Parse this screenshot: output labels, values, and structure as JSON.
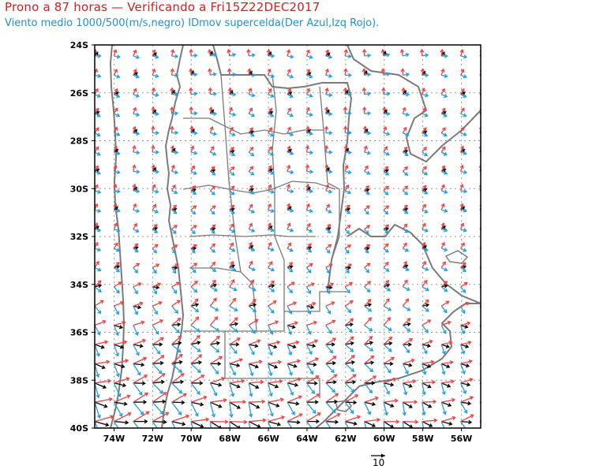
{
  "header": {
    "title": "Prono a 87 horas — Verificando a Fri15Z22DEC2017",
    "subtitle": "Viento medio 1000/500(m/s,negro) IDmov supercelda(Der Azul,Izq Rojo)."
  },
  "map": {
    "lat_labels": [
      "24S",
      "26S",
      "28S",
      "30S",
      "32S",
      "34S",
      "36S",
      "38S",
      "40S"
    ],
    "lon_labels": [
      "74W",
      "72W",
      "70W",
      "68W",
      "66W",
      "64W",
      "62W",
      "60W",
      "58W",
      "56W"
    ],
    "reference_vector_label": "10",
    "colors": {
      "mean_wind": "#000000",
      "right_mover": "#1e9ee6",
      "left_mover": "#f04040",
      "borders": "#7a7a7a",
      "grid": "#9a9a9a"
    }
  }
}
